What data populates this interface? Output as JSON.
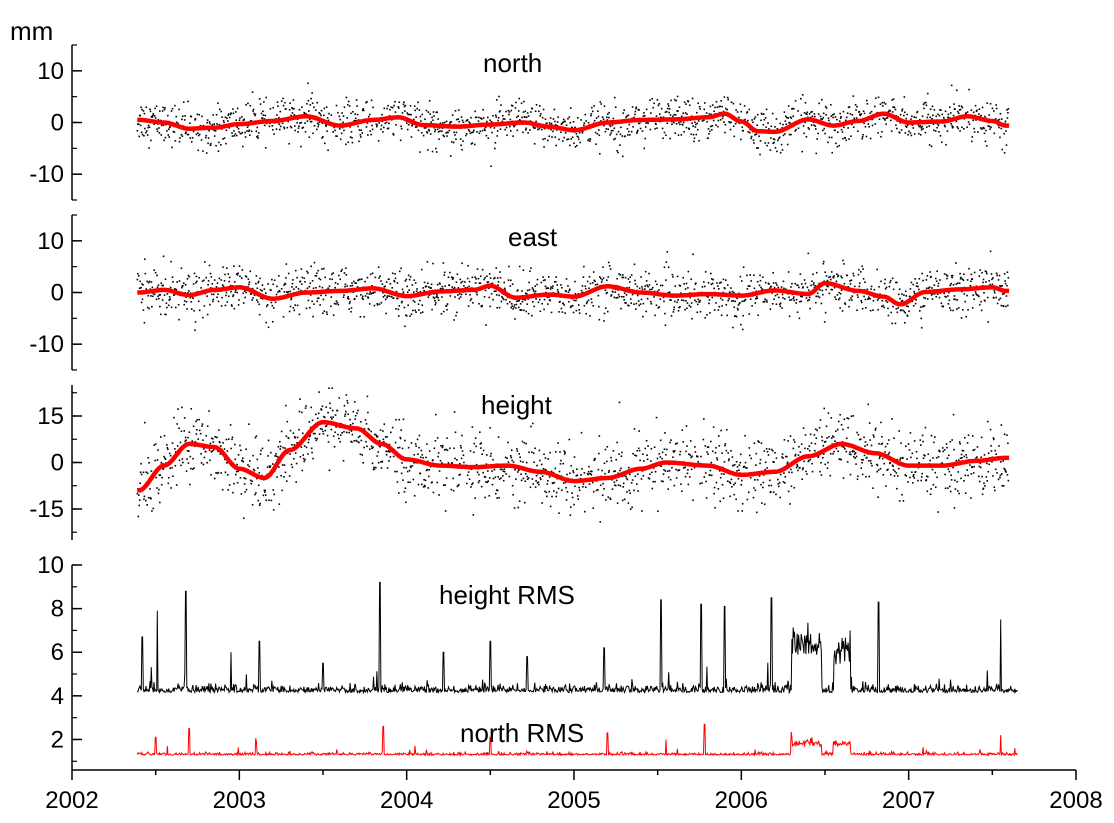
{
  "chart_data": [
    {
      "type": "scatter",
      "panel": "north",
      "title": "north",
      "ylabel": "mm",
      "ylim": [
        -15,
        15
      ],
      "yticks": [
        "10",
        "0",
        "-10"
      ],
      "ytick_values": [
        10,
        0,
        -10
      ],
      "series": [
        {
          "kind": "scatter-noise",
          "stddev": 2.0,
          "color": "#000000"
        },
        {
          "kind": "smooth",
          "color": "#ff0000",
          "x": [
            2002.4,
            2002.55,
            2002.7,
            2002.85,
            2003.0,
            2003.2,
            2003.4,
            2003.6,
            2003.8,
            2003.95,
            2004.1,
            2004.3,
            2004.5,
            2004.7,
            2004.85,
            2005.0,
            2005.2,
            2005.4,
            2005.6,
            2005.8,
            2005.9,
            2006.0,
            2006.1,
            2006.2,
            2006.4,
            2006.55,
            2006.7,
            2006.85,
            2007.0,
            2007.2,
            2007.35,
            2007.5,
            2007.58
          ],
          "y": [
            0.5,
            0,
            -1.2,
            -1,
            -0.3,
            0.3,
            1.2,
            -0.6,
            0.5,
            1.0,
            -0.5,
            -0.8,
            -0.4,
            0,
            -0.8,
            -1.5,
            0,
            0.5,
            0.6,
            1.0,
            1.7,
            0.2,
            -1.7,
            -1.8,
            0.6,
            -0.6,
            0.3,
            1.7,
            0,
            0.2,
            1.2,
            0.3,
            -0.6
          ]
        }
      ]
    },
    {
      "type": "scatter",
      "panel": "east",
      "title": "east",
      "ylim": [
        -15,
        15
      ],
      "yticks": [
        "10",
        "0",
        "-10"
      ],
      "ytick_values": [
        10,
        0,
        -10
      ],
      "series": [
        {
          "kind": "scatter-noise",
          "stddev": 2.2,
          "color": "#000000"
        },
        {
          "kind": "smooth",
          "color": "#ff0000",
          "x": [
            2002.4,
            2002.55,
            2002.7,
            2002.85,
            2003.0,
            2003.2,
            2003.4,
            2003.6,
            2003.8,
            2004.0,
            2004.2,
            2004.4,
            2004.5,
            2004.65,
            2004.85,
            2005.0,
            2005.2,
            2005.4,
            2005.6,
            2005.8,
            2006.0,
            2006.2,
            2006.4,
            2006.5,
            2006.7,
            2006.85,
            2006.95,
            2007.1,
            2007.3,
            2007.5,
            2007.58
          ],
          "y": [
            0,
            0.5,
            -0.5,
            0.5,
            1.0,
            -1.2,
            0,
            0.3,
            0.8,
            -0.7,
            0.2,
            0.5,
            1.3,
            -1.0,
            -0.4,
            -0.8,
            1.2,
            0,
            -0.6,
            -0.3,
            -0.6,
            0.4,
            -0.3,
            1.8,
            0.3,
            -0.8,
            -2.3,
            0.1,
            0.6,
            1.0,
            0.3
          ]
        }
      ]
    },
    {
      "type": "scatter",
      "panel": "height",
      "title": "height",
      "ylim": [
        -25,
        25
      ],
      "yticks": [
        "15",
        "0",
        "-15"
      ],
      "ytick_values": [
        15,
        0,
        -15
      ],
      "series": [
        {
          "kind": "scatter-noise",
          "stddev": 5.5,
          "color": "#000000"
        },
        {
          "kind": "smooth",
          "color": "#ff0000",
          "x": [
            2002.4,
            2002.55,
            2002.7,
            2002.85,
            2003.0,
            2003.15,
            2003.3,
            2003.5,
            2003.7,
            2003.85,
            2004.0,
            2004.2,
            2004.4,
            2004.6,
            2004.8,
            2005.0,
            2005.2,
            2005.4,
            2005.55,
            2005.8,
            2006.0,
            2006.2,
            2006.4,
            2006.6,
            2006.8,
            2007.0,
            2007.2,
            2007.4,
            2007.58
          ],
          "y": [
            -9,
            -1,
            6,
            5,
            -2,
            -5,
            4,
            13,
            11,
            6,
            1,
            -1,
            -1.5,
            -1,
            -3,
            -6,
            -5,
            -2,
            0,
            -1,
            -4,
            -3,
            2,
            6,
            3,
            -1,
            -1,
            0.5,
            1.5
          ]
        }
      ]
    },
    {
      "type": "line",
      "panel": "rms",
      "xlim": [
        2002,
        2008
      ],
      "xticks": [
        "2002",
        "2003",
        "2004",
        "2005",
        "2006",
        "2007",
        "2008"
      ],
      "xtick_values": [
        2002,
        2003,
        2004,
        2005,
        2006,
        2007,
        2008
      ],
      "ylim": [
        0.6,
        10
      ],
      "yticks": [
        "10",
        "8",
        "6",
        "4",
        "2"
      ],
      "ytick_values": [
        10,
        8,
        6,
        4,
        2
      ],
      "series": [
        {
          "name": "height RMS",
          "color": "#000000",
          "base": 4.2,
          "spikes_x": [
            2002.42,
            2002.51,
            2002.68,
            2002.95,
            2003.12,
            2003.5,
            2003.84,
            2004.22,
            2004.5,
            2004.72,
            2005.18,
            2005.52,
            2005.76,
            2005.9,
            2006.18,
            2006.65,
            2006.82,
            2007.55
          ],
          "spikes_y": [
            6.7,
            7.9,
            8.8,
            6.0,
            6.5,
            5.5,
            9.2,
            6.0,
            6.5,
            5.8,
            6.2,
            8.4,
            8.2,
            8.1,
            8.5,
            7.0,
            8.3,
            7.5
          ],
          "plateaus": [
            [
              2006.3,
              2006.48,
              6.4
            ],
            [
              2006.55,
              2006.65,
              5.8
            ]
          ]
        },
        {
          "name": "north RMS",
          "color": "#ff0000",
          "base": 1.3,
          "spikes_x": [
            2002.5,
            2002.7,
            2003.1,
            2003.86,
            2004.5,
            2005.2,
            2005.55,
            2005.78,
            2006.3,
            2006.55,
            2007.55
          ],
          "spikes_y": [
            2.1,
            2.5,
            1.9,
            2.6,
            2.1,
            2.3,
            2.0,
            2.7,
            2.1,
            1.9,
            2.2
          ],
          "plateaus": [
            [
              2006.3,
              2006.48,
              1.8
            ],
            [
              2006.55,
              2006.65,
              1.8
            ]
          ]
        }
      ]
    }
  ],
  "labels": {
    "unit": "mm",
    "north": "north",
    "east": "east",
    "height": "height",
    "height_rms": "height RMS",
    "north_rms": "north RMS"
  }
}
